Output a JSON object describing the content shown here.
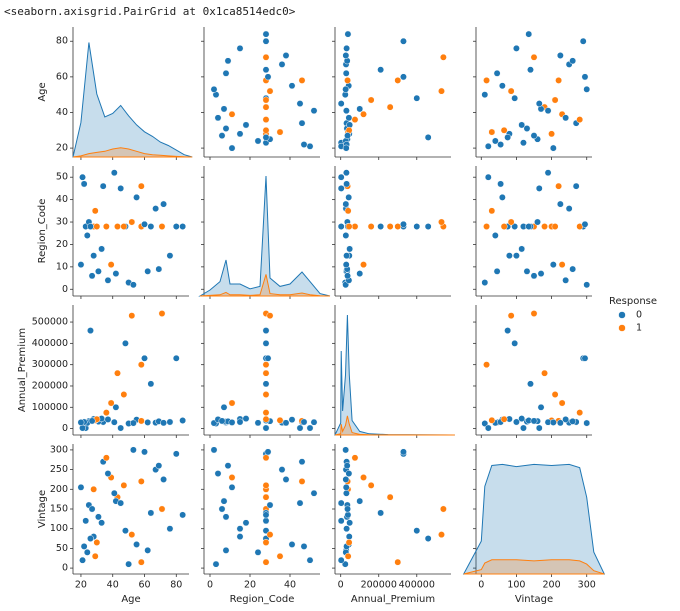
{
  "chart_data": {
    "type": "pairgrid",
    "title": "<seaborn.axisgrid.PairGrid at 0x1ca8514edc0>",
    "variables": [
      {
        "name": "Age",
        "lim": [
          15,
          88
        ],
        "xticks": [
          20,
          40,
          60,
          80
        ],
        "yticks": [
          20,
          40,
          60,
          80
        ]
      },
      {
        "name": "Region_Code",
        "lim": [
          -3,
          55
        ],
        "xticks": [
          0,
          20,
          40
        ],
        "yticks": [
          0,
          10,
          20,
          30,
          40,
          50
        ]
      },
      {
        "name": "Annual_Premium",
        "lim": [
          -30000,
          580000
        ],
        "xticks": [
          0,
          200000,
          400000
        ],
        "yticks": [
          0,
          100000,
          200000,
          300000,
          400000,
          500000
        ]
      },
      {
        "name": "Vintage",
        "lim": [
          -15,
          315
        ],
        "xticks": [
          0,
          100,
          200,
          300
        ],
        "yticks": [
          0,
          50,
          100,
          150,
          200,
          250,
          300
        ]
      }
    ],
    "legend": {
      "title": "Response",
      "levels": [
        {
          "name": "0",
          "color": "#1f77b4"
        },
        {
          "name": "1",
          "color": "#ff7f0e"
        }
      ]
    },
    "points": {
      "Age": [
        23,
        28,
        62,
        34,
        28,
        71,
        50,
        39,
        25,
        80,
        55,
        21,
        43,
        67,
        31,
        48,
        58,
        24,
        36,
        76,
        42,
        29,
        64,
        53,
        22,
        47,
        33,
        69,
        26,
        41,
        58,
        37,
        84,
        20,
        52,
        45,
        60,
        30,
        72,
        27
      ],
      "Region_Code": [
        28,
        28,
        8,
        46,
        15,
        28,
        3,
        11,
        30,
        28,
        41,
        50,
        28,
        36,
        8,
        28,
        46,
        24,
        28,
        15,
        7,
        35,
        28,
        2,
        47,
        28,
        18,
        9,
        28,
        52,
        28,
        4,
        28,
        11,
        30,
        45,
        29,
        28,
        38,
        6
      ],
      "Annual_Premium": [
        2630,
        38000,
        29000,
        31000,
        45000,
        540000,
        24000,
        120000,
        35000,
        330000,
        42000,
        2630,
        260000,
        28000,
        33000,
        400000,
        36000,
        27000,
        75000,
        31000,
        100000,
        39000,
        210000,
        26000,
        31000,
        160000,
        47000,
        34000,
        460000,
        30000,
        300000,
        43000,
        38000,
        29000,
        530000,
        2630,
        330000,
        44000,
        27000,
        36000
      ],
      "Vintage": [
        120,
        200,
        45,
        270,
        80,
        150,
        10,
        230,
        160,
        290,
        60,
        20,
        180,
        250,
        130,
        95,
        220,
        40,
        280,
        100,
        170,
        30,
        140,
        300,
        55,
        210,
        115,
        260,
        75,
        190,
        15,
        240,
        135,
        205,
        85,
        165,
        295,
        65,
        225,
        150
      ],
      "Response": [
        0,
        1,
        0,
        0,
        0,
        1,
        0,
        1,
        0,
        0,
        0,
        0,
        1,
        0,
        0,
        0,
        1,
        0,
        1,
        0,
        0,
        1,
        0,
        0,
        0,
        1,
        0,
        0,
        0,
        0,
        1,
        0,
        0,
        0,
        1,
        0,
        0,
        1,
        0,
        0
      ]
    },
    "kde": [
      {
        "x": [
          15,
          20,
          25,
          30,
          35,
          40,
          45,
          50,
          55,
          60,
          65,
          70,
          75,
          80,
          85,
          90
        ],
        "ylim": [
          0,
          1.1
        ],
        "series": [
          [
            0,
            0.3,
            1.0,
            0.55,
            0.35,
            0.38,
            0.45,
            0.36,
            0.28,
            0.22,
            0.18,
            0.13,
            0.1,
            0.06,
            0.02,
            0
          ],
          [
            0,
            0.01,
            0.03,
            0.04,
            0.05,
            0.07,
            0.08,
            0.07,
            0.05,
            0.03,
            0.02,
            0.015,
            0.01,
            0.005,
            0.002,
            0
          ]
        ]
      },
      {
        "x": [
          -5,
          0,
          5,
          8,
          10,
          15,
          20,
          25,
          28,
          30,
          35,
          40,
          46,
          50,
          55,
          60
        ],
        "ylim": [
          0,
          1.05
        ],
        "series": [
          [
            0,
            0.05,
            0.12,
            0.3,
            0.1,
            0.1,
            0.06,
            0.08,
            1.0,
            0.15,
            0.08,
            0.1,
            0.2,
            0.12,
            0.02,
            0
          ],
          [
            0,
            0.005,
            0.01,
            0.03,
            0.01,
            0.01,
            0.005,
            0.01,
            0.18,
            0.02,
            0.01,
            0.01,
            0.025,
            0.01,
            0.002,
            0
          ]
        ]
      },
      {
        "x": [
          -30000,
          0,
          2630,
          10000,
          25000,
          35000,
          45000,
          60000,
          100000,
          150000,
          250000,
          600000
        ],
        "ylim": [
          0,
          1.05
        ],
        "series": [
          [
            0,
            0.1,
            0.7,
            0.2,
            0.5,
            1.0,
            0.5,
            0.12,
            0.03,
            0.01,
            0.003,
            0
          ],
          [
            0,
            0.01,
            0.09,
            0.03,
            0.08,
            0.16,
            0.09,
            0.02,
            0.005,
            0.002,
            0.001,
            0
          ]
        ]
      },
      {
        "x": [
          -50,
          0,
          10,
          30,
          60,
          100,
          150,
          200,
          250,
          280,
          300,
          320,
          350
        ],
        "ylim": [
          0,
          1.15
        ],
        "series": [
          [
            0,
            0.3,
            0.8,
            0.99,
            1,
            0.98,
            1,
            0.99,
            1,
            0.97,
            0.7,
            0.2,
            0
          ],
          [
            0,
            0.04,
            0.1,
            0.13,
            0.13,
            0.13,
            0.12,
            0.13,
            0.13,
            0.12,
            0.09,
            0.03,
            0
          ]
        ]
      }
    ]
  }
}
